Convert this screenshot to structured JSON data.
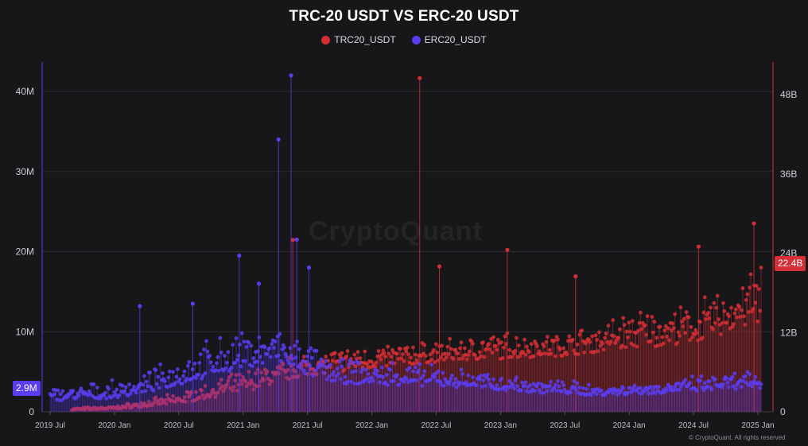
{
  "chart_data": {
    "type": "scatter",
    "title": "TRC-20 USDT VS ERC-20 USDT",
    "legend_placement": "top-center",
    "series": [
      {
        "name": "TRC20_USDT",
        "color": "#d32f35",
        "axis": "right",
        "markers": "dots-with-vertical-stems"
      },
      {
        "name": "ERC20_USDT",
        "color": "#5b3cf0",
        "axis": "left",
        "markers": "dots-with-vertical-stems"
      }
    ],
    "x_ticks": [
      "2019 Jul",
      "2020 Jan",
      "2020 Jul",
      "2021 Jan",
      "2021 Jul",
      "2022 Jan",
      "2022 Jul",
      "2023 Jan",
      "2023 Jul",
      "2024 Jan",
      "2024 Jul",
      "2025 Jan"
    ],
    "xlim": [
      "2019-07",
      "2025-01"
    ],
    "y_left": {
      "ticks": [
        "0",
        "10M",
        "20M",
        "30M",
        "40M"
      ],
      "range": [
        0,
        40000000
      ]
    },
    "y_right": {
      "ticks": [
        "0",
        "12B",
        "24B",
        "36B",
        "48B"
      ],
      "range": [
        0,
        48000000000
      ]
    },
    "last_value_left": "2.9M",
    "last_value_right": "22.4B",
    "grid": true,
    "watermark": "CryptoQuant",
    "copyright": "© CryptoQuant. All rights reserved",
    "erc_monthly": [
      {
        "date": "2019-07",
        "base": 1400000,
        "hi": 3300000
      },
      {
        "date": "2019-10",
        "base": 1500000,
        "hi": 3600000
      },
      {
        "date": "2020-01",
        "base": 1700000,
        "hi": 4000000
      },
      {
        "date": "2020-04",
        "base": 2400000,
        "hi": 5200000
      },
      {
        "date": "2020-07",
        "base": 3300000,
        "hi": 7200000
      },
      {
        "date": "2020-10",
        "base": 4400000,
        "hi": 9500000
      },
      {
        "date": "2021-01",
        "base": 5500000,
        "hi": 10500000
      },
      {
        "date": "2021-04",
        "base": 6200000,
        "hi": 11000000
      },
      {
        "date": "2021-07",
        "base": 4500000,
        "hi": 9000000
      },
      {
        "date": "2021-10",
        "base": 3500000,
        "hi": 7000000
      },
      {
        "date": "2022-04",
        "base": 3300000,
        "hi": 6500000
      },
      {
        "date": "2022-10",
        "base": 3000000,
        "hi": 5500000
      },
      {
        "date": "2023-04",
        "base": 2400000,
        "hi": 4600000
      },
      {
        "date": "2023-10",
        "base": 2000000,
        "hi": 3700000
      },
      {
        "date": "2024-04",
        "base": 2300000,
        "hi": 4200000
      },
      {
        "date": "2024-10",
        "base": 2800000,
        "hi": 5000000
      },
      {
        "date": "2025-01",
        "base": 2900000,
        "hi": 5600000
      }
    ],
    "trc_monthly": [
      {
        "date": "2019-07",
        "base": 200000000,
        "hi": 500000000
      },
      {
        "date": "2020-01",
        "base": 400000000,
        "hi": 900000000
      },
      {
        "date": "2020-07",
        "base": 1200000000,
        "hi": 3000000000
      },
      {
        "date": "2021-01",
        "base": 3000000000,
        "hi": 6500000000
      },
      {
        "date": "2021-07",
        "base": 5500000000,
        "hi": 9500000000
      },
      {
        "date": "2022-01",
        "base": 6500000000,
        "hi": 10500000000
      },
      {
        "date": "2022-07",
        "base": 7500000000,
        "hi": 11000000000
      },
      {
        "date": "2023-01",
        "base": 8000000000,
        "hi": 12500000000
      },
      {
        "date": "2023-07",
        "base": 8500000000,
        "hi": 12200000000
      },
      {
        "date": "2024-01",
        "base": 9500000000,
        "hi": 16000000000
      },
      {
        "date": "2024-07",
        "base": 10500000000,
        "hi": 16500000000
      },
      {
        "date": "2025-01",
        "base": 13000000000,
        "hi": 24000000000
      }
    ],
    "erc_spikes": [
      {
        "date": "2020-03-12",
        "value": 13200000
      },
      {
        "date": "2020-08-10",
        "value": 13500000
      },
      {
        "date": "2020-12-20",
        "value": 19500000
      },
      {
        "date": "2021-02-15",
        "value": 16000000
      },
      {
        "date": "2021-04-10",
        "value": 34000000
      },
      {
        "date": "2021-05-15",
        "value": 42000000
      },
      {
        "date": "2021-06-01",
        "value": 21500000
      },
      {
        "date": "2021-07-05",
        "value": 18000000
      }
    ],
    "trc_spikes": [
      {
        "date": "2021-05-20",
        "value": 26000000000
      },
      {
        "date": "2022-05-15",
        "value": 50500000000
      },
      {
        "date": "2022-07-10",
        "value": 22000000000
      },
      {
        "date": "2023-01-20",
        "value": 24500000000
      },
      {
        "date": "2023-08-01",
        "value": 20500000000
      },
      {
        "date": "2024-07-15",
        "value": 25000000000
      },
      {
        "date": "2024-12-20",
        "value": 28500000000
      }
    ]
  }
}
